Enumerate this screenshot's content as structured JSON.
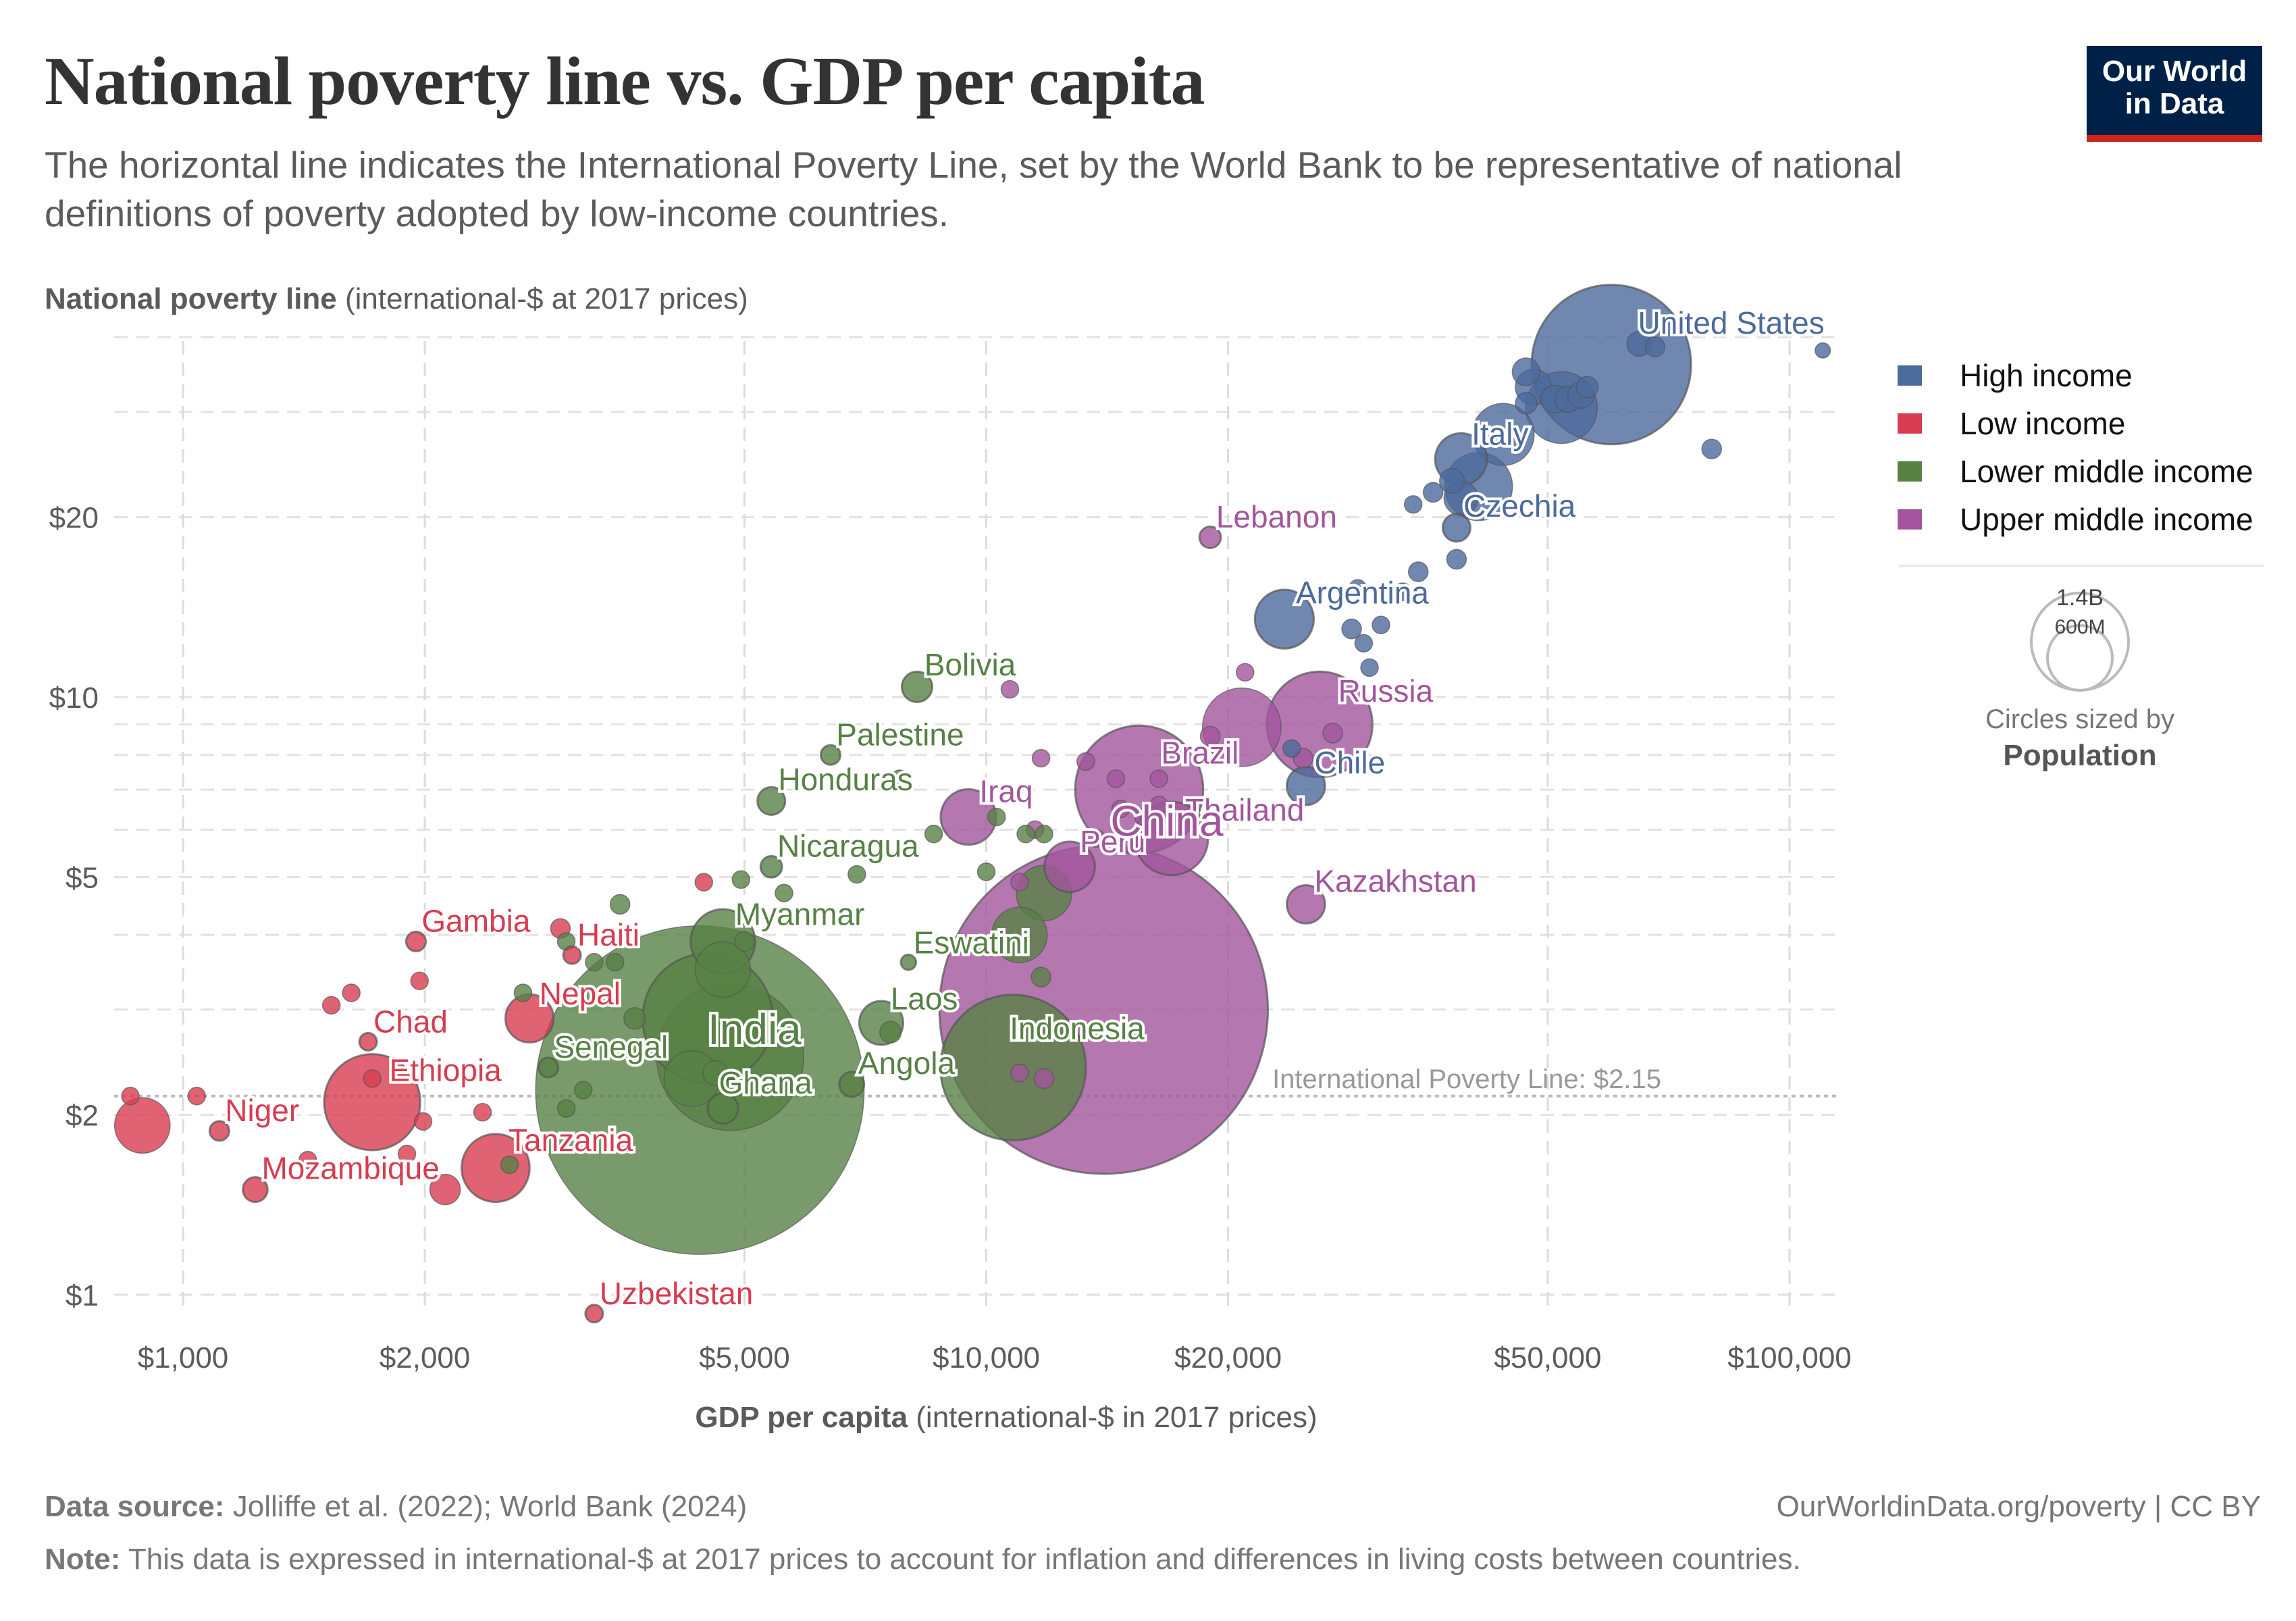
{
  "header": {
    "title": "National poverty line vs. GDP per capita",
    "subtitle": "The horizontal line indicates the International Poverty Line, set by the World Bank to be representative of national definitions of poverty adopted by low-income countries.",
    "logo_line1": "Our World",
    "logo_line2": "in Data"
  },
  "footer": {
    "source_label": "Data source:",
    "source_text": " Jolliffe et al. (2022); World Bank (2024)",
    "attribution": "OurWorldinData.org/poverty | CC BY",
    "note_label": "Note:",
    "note_text": " This data is expressed in international-$ at 2017 prices to account for inflation and differences in living costs between countries."
  },
  "size_legend": {
    "large_label": "1.4B",
    "small_label": "600M",
    "caption": "Circles sized by",
    "caption_bold": "Population"
  },
  "chart_data": {
    "type": "scatter",
    "title": "National poverty line vs. GDP per capita",
    "ylabel_bold": "National poverty line",
    "ylabel_rest": " (international-$ at 2017 prices)",
    "xlabel_bold": "GDP per capita",
    "xlabel_rest": " (international-$ in 2017 prices)",
    "x_scale": "log",
    "y_scale": "log",
    "xlim": [
      850,
      115000
    ],
    "ylim": [
      0.88,
      42
    ],
    "x_ticks": [
      1000,
      2000,
      5000,
      10000,
      20000,
      50000,
      100000
    ],
    "x_tick_labels": [
      "$1,000",
      "$2,000",
      "$5,000",
      "$10,000",
      "$20,000",
      "$50,000",
      "$100,000"
    ],
    "y_ticks": [
      1,
      2,
      5,
      10,
      20
    ],
    "y_tick_labels": [
      "$1",
      "$2",
      "$5",
      "$10",
      "$20"
    ],
    "y_minor_gridlines": [
      3,
      4,
      6,
      7,
      8,
      9,
      30,
      40
    ],
    "grid": true,
    "legend_position": "right",
    "reference_line": {
      "value": 2.15,
      "label": "International Poverty Line: $2.15"
    },
    "series": [
      {
        "name": "High income",
        "color": "#4c6a9c"
      },
      {
        "name": "Low income",
        "color": "#d73c50"
      },
      {
        "name": "Lower middle income",
        "color": "#578145"
      },
      {
        "name": "Upper middle income",
        "color": "#a2559c"
      }
    ],
    "points": [
      {
        "label": "United States",
        "group": "High income",
        "gdp": 60000,
        "pov": 36,
        "pop": 330,
        "show": true
      },
      {
        "label": "",
        "group": "High income",
        "gdp": 65000,
        "pov": 39,
        "pop": 8
      },
      {
        "label": "",
        "group": "High income",
        "gdp": 68000,
        "pov": 38.5,
        "pop": 5
      },
      {
        "label": "",
        "group": "High income",
        "gdp": 110000,
        "pov": 38,
        "pop": 3
      },
      {
        "label": "",
        "group": "High income",
        "gdp": 47000,
        "pov": 35,
        "pop": 10
      },
      {
        "label": "",
        "group": "High income",
        "gdp": 48000,
        "pov": 33,
        "pop": 17
      },
      {
        "label": "",
        "group": "High income",
        "gdp": 47000,
        "pov": 31,
        "pop": 6
      },
      {
        "label": "",
        "group": "High income",
        "gdp": 51000,
        "pov": 31.5,
        "pop": 10
      },
      {
        "label": "",
        "group": "High income",
        "gdp": 53000,
        "pov": 31.5,
        "pop": 9
      },
      {
        "label": "",
        "group": "High income",
        "gdp": 55000,
        "pov": 32,
        "pop": 9
      },
      {
        "label": "",
        "group": "High income",
        "gdp": 56000,
        "pov": 33,
        "pop": 6
      },
      {
        "label": "",
        "group": "High income",
        "gdp": 52000,
        "pov": 30.5,
        "pop": 67
      },
      {
        "label": "",
        "group": "High income",
        "gdp": 80000,
        "pov": 26,
        "pop": 5
      },
      {
        "label": "",
        "group": "High income",
        "gdp": 44000,
        "pov": 27.5,
        "pop": 50
      },
      {
        "label": "Italy",
        "group": "High income",
        "gdp": 39000,
        "pov": 25,
        "pop": 35,
        "show": true
      },
      {
        "label": "",
        "group": "High income",
        "gdp": 38000,
        "pov": 23,
        "pop": 8
      },
      {
        "label": "",
        "group": "High income",
        "gdp": 36000,
        "pov": 22,
        "pop": 5
      },
      {
        "label": "",
        "group": "High income",
        "gdp": 41000,
        "pov": 22.5,
        "pop": 60
      },
      {
        "label": "",
        "group": "High income",
        "gdp": 39000,
        "pov": 21.5,
        "pop": 15
      },
      {
        "label": "",
        "group": "High income",
        "gdp": 34000,
        "pov": 21,
        "pop": 4
      },
      {
        "label": "Czechia",
        "group": "High income",
        "gdp": 38500,
        "pov": 19.2,
        "pop": 10,
        "show": true
      },
      {
        "label": "",
        "group": "High income",
        "gdp": 38500,
        "pov": 17,
        "pop": 5
      },
      {
        "label": "",
        "group": "High income",
        "gdp": 34500,
        "pov": 16.2,
        "pop": 5
      },
      {
        "label": "",
        "group": "High income",
        "gdp": 29000,
        "pov": 15.2,
        "pop": 4
      },
      {
        "label": "",
        "group": "High income",
        "gdp": 33000,
        "pov": 15,
        "pop": 4
      },
      {
        "label": "Argentina",
        "group": "High income",
        "gdp": 23500,
        "pov": 13.5,
        "pop": 45,
        "show": true
      },
      {
        "label": "",
        "group": "High income",
        "gdp": 28500,
        "pov": 13,
        "pop": 5
      },
      {
        "label": "",
        "group": "High income",
        "gdp": 31000,
        "pov": 13.2,
        "pop": 4
      },
      {
        "label": "",
        "group": "High income",
        "gdp": 29500,
        "pov": 12.3,
        "pop": 4
      },
      {
        "label": "",
        "group": "High income",
        "gdp": 30000,
        "pov": 11.2,
        "pop": 4
      },
      {
        "label": "",
        "group": "High income",
        "gdp": 24000,
        "pov": 8.2,
        "pop": 4
      },
      {
        "label": "Chile",
        "group": "High income",
        "gdp": 25000,
        "pov": 7.1,
        "pop": 19,
        "show": true
      },
      {
        "label": "Lebanon",
        "group": "Upper middle income",
        "gdp": 19000,
        "pov": 18.5,
        "pop": 6,
        "show": true
      },
      {
        "label": "",
        "group": "Upper middle income",
        "gdp": 21000,
        "pov": 11,
        "pop": 4
      },
      {
        "label": "",
        "group": "Upper middle income",
        "gdp": 10700,
        "pov": 10.3,
        "pop": 4
      },
      {
        "label": "Russia",
        "group": "Upper middle income",
        "gdp": 26000,
        "pov": 9,
        "pop": 145,
        "show": true
      },
      {
        "label": "",
        "group": "Upper middle income",
        "gdp": 27000,
        "pov": 8.7,
        "pop": 5
      },
      {
        "label": "",
        "group": "Upper middle income",
        "gdp": 20800,
        "pov": 8.9,
        "pop": 80
      },
      {
        "label": "",
        "group": "Upper middle income",
        "gdp": 19000,
        "pov": 8.6,
        "pop": 5
      },
      {
        "label": "",
        "group": "Upper middle income",
        "gdp": 24800,
        "pov": 7.9,
        "pop": 5
      },
      {
        "label": "Brazil",
        "group": "Upper middle income",
        "gdp": 15500,
        "pov": 7,
        "pop": 213,
        "show": true
      },
      {
        "label": "",
        "group": "Upper middle income",
        "gdp": 16400,
        "pov": 7.3,
        "pop": 4
      },
      {
        "label": "",
        "group": "Upper middle income",
        "gdp": 16400,
        "pov": 6.6,
        "pop": 4
      },
      {
        "label": "",
        "group": "Upper middle income",
        "gdp": 14500,
        "pov": 7.3,
        "pop": 4
      },
      {
        "label": "",
        "group": "Upper middle income",
        "gdp": 14700,
        "pov": 6.5,
        "pop": 4
      },
      {
        "label": "",
        "group": "Upper middle income",
        "gdp": 15700,
        "pov": 6.3,
        "pop": 4
      },
      {
        "label": "",
        "group": "Upper middle income",
        "gdp": 11700,
        "pov": 7.9,
        "pop": 4
      },
      {
        "label": "",
        "group": "Upper middle income",
        "gdp": 13300,
        "pov": 7.8,
        "pop": 4
      },
      {
        "label": "Thailand",
        "group": "Upper middle income",
        "gdp": 17000,
        "pov": 5.8,
        "pop": 70,
        "show": true
      },
      {
        "label": "Iraq",
        "group": "Upper middle income",
        "gdp": 9500,
        "pov": 6.3,
        "pop": 40,
        "show": true
      },
      {
        "label": "Peru",
        "group": "Upper middle income",
        "gdp": 12700,
        "pov": 5.2,
        "pop": 33,
        "show": true
      },
      {
        "label": "",
        "group": "Upper middle income",
        "gdp": 11500,
        "pov": 6,
        "pop": 4
      },
      {
        "label": "",
        "group": "Upper middle income",
        "gdp": 11000,
        "pov": 4.9,
        "pop": 4
      },
      {
        "label": "",
        "group": "Upper middle income",
        "gdp": 13700,
        "pov": 5.8,
        "pop": 4
      },
      {
        "label": "Kazakhstan",
        "group": "Upper middle income",
        "gdp": 25000,
        "pov": 4.5,
        "pop": 19,
        "show": true
      },
      {
        "label": "China",
        "group": "Upper middle income",
        "gdp": 14000,
        "pov": 3,
        "pop": 1400,
        "show": true
      },
      {
        "label": "",
        "group": "Upper middle income",
        "gdp": 11800,
        "pov": 2.3,
        "pop": 5
      },
      {
        "label": "",
        "group": "Upper middle income",
        "gdp": 11000,
        "pov": 2.35,
        "pop": 4
      },
      {
        "label": "Bolivia",
        "group": "Lower middle income",
        "gdp": 8200,
        "pov": 10.4,
        "pop": 12,
        "show": true
      },
      {
        "label": "Palestine",
        "group": "Lower middle income",
        "gdp": 6400,
        "pov": 8,
        "pop": 5,
        "show": true
      },
      {
        "label": "",
        "group": "Lower middle income",
        "gdp": 7800,
        "pov": 7.3,
        "pop": 4
      },
      {
        "label": "Honduras",
        "group": "Lower middle income",
        "gdp": 5400,
        "pov": 6.7,
        "pop": 10,
        "show": true
      },
      {
        "label": "",
        "group": "Lower middle income",
        "gdp": 10300,
        "pov": 6.3,
        "pop": 4
      },
      {
        "label": "",
        "group": "Lower middle income",
        "gdp": 8600,
        "pov": 5.9,
        "pop": 4
      },
      {
        "label": "",
        "group": "Lower middle income",
        "gdp": 11200,
        "pov": 5.9,
        "pop": 4
      },
      {
        "label": "",
        "group": "Lower middle income",
        "gdp": 11800,
        "pov": 5.9,
        "pop": 4
      },
      {
        "label": "Nicaragua",
        "group": "Lower middle income",
        "gdp": 5400,
        "pov": 5.2,
        "pop": 6,
        "show": true
      },
      {
        "label": "",
        "group": "Lower middle income",
        "gdp": 6900,
        "pov": 5.05,
        "pop": 4
      },
      {
        "label": "",
        "group": "Lower middle income",
        "gdp": 10000,
        "pov": 5.1,
        "pop": 4
      },
      {
        "label": "",
        "group": "Lower middle income",
        "gdp": 4950,
        "pov": 4.95,
        "pop": 4
      },
      {
        "label": "",
        "group": "Lower middle income",
        "gdp": 5600,
        "pov": 4.7,
        "pop": 4
      },
      {
        "label": "",
        "group": "Lower middle income",
        "gdp": 11800,
        "pov": 4.7,
        "pop": 40
      },
      {
        "label": "Myanmar",
        "group": "Lower middle income",
        "gdp": 4700,
        "pov": 3.9,
        "pop": 54,
        "show": true
      },
      {
        "label": "",
        "group": "Lower middle income",
        "gdp": 5000,
        "pov": 3.9,
        "pop": 5
      },
      {
        "label": "",
        "group": "Lower middle income",
        "gdp": 4700,
        "pov": 3.5,
        "pop": 40
      },
      {
        "label": "Eswatini",
        "group": "Lower middle income",
        "gdp": 8000,
        "pov": 3.6,
        "pop": 3,
        "show": true
      },
      {
        "label": "",
        "group": "Lower middle income",
        "gdp": 11000,
        "pov": 4,
        "pop": 40
      },
      {
        "label": "",
        "group": "Lower middle income",
        "gdp": 11700,
        "pov": 3.4,
        "pop": 5
      },
      {
        "label": "",
        "group": "Lower middle income",
        "gdp": 3500,
        "pov": 4.5,
        "pop": 5
      },
      {
        "label": "",
        "group": "Lower middle income",
        "gdp": 3000,
        "pov": 3.9,
        "pop": 4
      },
      {
        "label": "",
        "group": "Lower middle income",
        "gdp": 3250,
        "pov": 3.6,
        "pop": 4
      },
      {
        "label": "",
        "group": "Lower middle income",
        "gdp": 3450,
        "pov": 3.6,
        "pop": 4
      },
      {
        "label": "",
        "group": "Lower middle income",
        "gdp": 2650,
        "pov": 3.2,
        "pop": 4
      },
      {
        "label": "",
        "group": "Lower middle income",
        "gdp": 3650,
        "pov": 2.9,
        "pop": 6
      },
      {
        "label": "Laos",
        "group": "Lower middle income",
        "gdp": 7400,
        "pov": 2.85,
        "pop": 25,
        "show": true
      },
      {
        "label": "",
        "group": "Lower middle income",
        "gdp": 7600,
        "pov": 2.75,
        "pop": 6
      },
      {
        "label": "India",
        "group": "Lower middle income",
        "gdp": 4500,
        "pov": 2.9,
        "pop": 220,
        "show": true
      },
      {
        "label": "",
        "group": "Lower middle income",
        "gdp": 4800,
        "pov": 2.5,
        "pop": 280
      },
      {
        "label": "Indonesia",
        "group": "Lower middle income",
        "gdp": 10800,
        "pov": 2.4,
        "pop": 275,
        "show": true
      },
      {
        "label": "Angola",
        "group": "Lower middle income",
        "gdp": 6800,
        "pov": 2.25,
        "pop": 8,
        "show": true
      },
      {
        "label": "Senegal",
        "group": "Lower middle income",
        "gdp": 2850,
        "pov": 2.4,
        "pop": 5,
        "show": true
      },
      {
        "label": "",
        "group": "Lower middle income",
        "gdp": 3150,
        "pov": 2.2,
        "pop": 4
      },
      {
        "label": "",
        "group": "Lower middle income",
        "gdp": 3000,
        "pov": 2.05,
        "pop": 4
      },
      {
        "label": "",
        "group": "Lower middle income",
        "gdp": 4300,
        "pov": 2.3,
        "pop": 40
      },
      {
        "label": "",
        "group": "Lower middle income",
        "gdp": 4600,
        "pov": 2.35,
        "pop": 8
      },
      {
        "label": "",
        "group": "Lower middle income",
        "gdp": 4400,
        "pov": 2.2,
        "pop": 1400
      },
      {
        "label": "Ghana",
        "group": "Lower middle income",
        "gdp": 4700,
        "pov": 2.05,
        "pop": 12,
        "show": true
      },
      {
        "label": "",
        "group": "Lower middle income",
        "gdp": 2550,
        "pov": 1.65,
        "pop": 4
      },
      {
        "label": "Gambia",
        "group": "Low income",
        "gdp": 1950,
        "pov": 3.9,
        "pop": 5,
        "show": true
      },
      {
        "label": "",
        "group": "Low income",
        "gdp": 2950,
        "pov": 4.1,
        "pop": 5
      },
      {
        "label": "Haiti",
        "group": "Low income",
        "gdp": 3050,
        "pov": 3.7,
        "pop": 4,
        "show": true
      },
      {
        "label": "",
        "group": "Low income",
        "gdp": 4450,
        "pov": 4.9,
        "pop": 4
      },
      {
        "label": "",
        "group": "Low income",
        "gdp": 1970,
        "pov": 3.35,
        "pop": 4
      },
      {
        "label": "",
        "group": "Low income",
        "gdp": 1530,
        "pov": 3.05,
        "pop": 4
      },
      {
        "label": "",
        "group": "Low income",
        "gdp": 1620,
        "pov": 3.2,
        "pop": 4
      },
      {
        "label": "Nepal",
        "group": "Low income",
        "gdp": 2700,
        "pov": 2.9,
        "pop": 30,
        "show": true
      },
      {
        "label": "Chad",
        "group": "Low income",
        "gdp": 1700,
        "pov": 2.65,
        "pop": 4,
        "show": true
      },
      {
        "label": "Ethiopia",
        "group": "Low income",
        "gdp": 1720,
        "pov": 2.1,
        "pop": 120,
        "show": true
      },
      {
        "label": "",
        "group": "Low income",
        "gdp": 1720,
        "pov": 2.3,
        "pop": 4
      },
      {
        "label": "",
        "group": "Low income",
        "gdp": 1990,
        "pov": 1.95,
        "pop": 4
      },
      {
        "label": "",
        "group": "Low income",
        "gdp": 2360,
        "pov": 2.02,
        "pop": 4
      },
      {
        "label": "",
        "group": "Low income",
        "gdp": 860,
        "pov": 2.15,
        "pop": 4
      },
      {
        "label": "",
        "group": "Low income",
        "gdp": 1040,
        "pov": 2.15,
        "pop": 4
      },
      {
        "label": "",
        "group": "Low income",
        "gdp": 890,
        "pov": 1.92,
        "pop": 40
      },
      {
        "label": "Niger",
        "group": "Low income",
        "gdp": 1110,
        "pov": 1.88,
        "pop": 5,
        "show": true
      },
      {
        "label": "",
        "group": "Low income",
        "gdp": 1430,
        "pov": 1.68,
        "pop": 4
      },
      {
        "label": "",
        "group": "Low income",
        "gdp": 1900,
        "pov": 1.72,
        "pop": 4
      },
      {
        "label": "Mozambique",
        "group": "Low income",
        "gdp": 1230,
        "pov": 1.5,
        "pop": 8,
        "show": true
      },
      {
        "label": "",
        "group": "Low income",
        "gdp": 2120,
        "pov": 1.5,
        "pop": 12
      },
      {
        "label": "Tanzania",
        "group": "Low income",
        "gdp": 2450,
        "pov": 1.63,
        "pop": 60,
        "show": true
      },
      {
        "label": "Uzbekistan",
        "group": "Low income",
        "gdp": 3250,
        "pov": 0.93,
        "pop": 4,
        "show": true
      }
    ]
  }
}
